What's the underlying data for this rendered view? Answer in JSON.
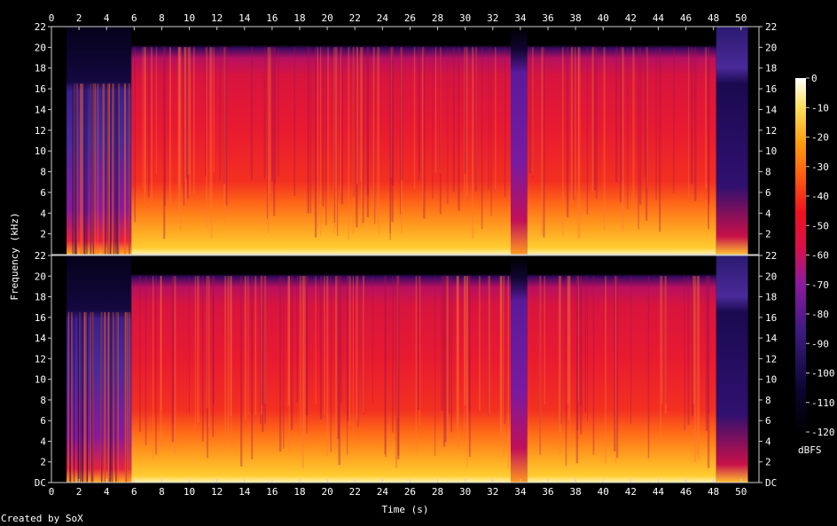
{
  "chart_data": {
    "type": "heatmap",
    "title": "",
    "xlabel": "Time (s)",
    "ylabel": "Frequency (kHz)",
    "xlim": [
      0,
      51.3
    ],
    "ylim": [
      0,
      22
    ],
    "x_ticks": [
      "0",
      "2",
      "4",
      "6",
      "8",
      "10",
      "12",
      "14",
      "16",
      "18",
      "20",
      "22",
      "24",
      "26",
      "28",
      "30",
      "32",
      "34",
      "36",
      "38",
      "40",
      "42",
      "44",
      "46",
      "48",
      "50"
    ],
    "channels": [
      {
        "y_ticks": [
          "22",
          "20",
          "18",
          "16",
          "14",
          "12",
          "10",
          "8",
          "6",
          "4",
          "2"
        ]
      },
      {
        "y_ticks": [
          "22",
          "20",
          "18",
          "16",
          "14",
          "12",
          "10",
          "8",
          "6",
          "4",
          "2",
          "DC"
        ]
      }
    ],
    "colorbar": {
      "label": "dBFS",
      "range": [
        -120,
        0
      ],
      "ticks": [
        "0",
        "-10",
        "-20",
        "-30",
        "-40",
        "-50",
        "-60",
        "-70",
        "-80",
        "-90",
        "-100",
        "-110",
        "-120"
      ]
    },
    "segments": [
      {
        "t": [
          1.1,
          5.8
        ],
        "level": "quiet intro, bandwidth ~16 kHz"
      },
      {
        "t": [
          5.8,
          33.3
        ],
        "level": "loud, full band to 20 kHz"
      },
      {
        "t": [
          33.3,
          34.5
        ],
        "level": "quiet"
      },
      {
        "t": [
          34.5,
          48.2
        ],
        "level": "loud, full band to 20 kHz"
      },
      {
        "t": [
          48.2,
          50.5
        ],
        "level": "fade out"
      }
    ]
  },
  "footer": {
    "credit": "Created by SoX"
  },
  "colors": {
    "background": "#000000",
    "axes": "#cccccc",
    "text": "#ffffff"
  }
}
